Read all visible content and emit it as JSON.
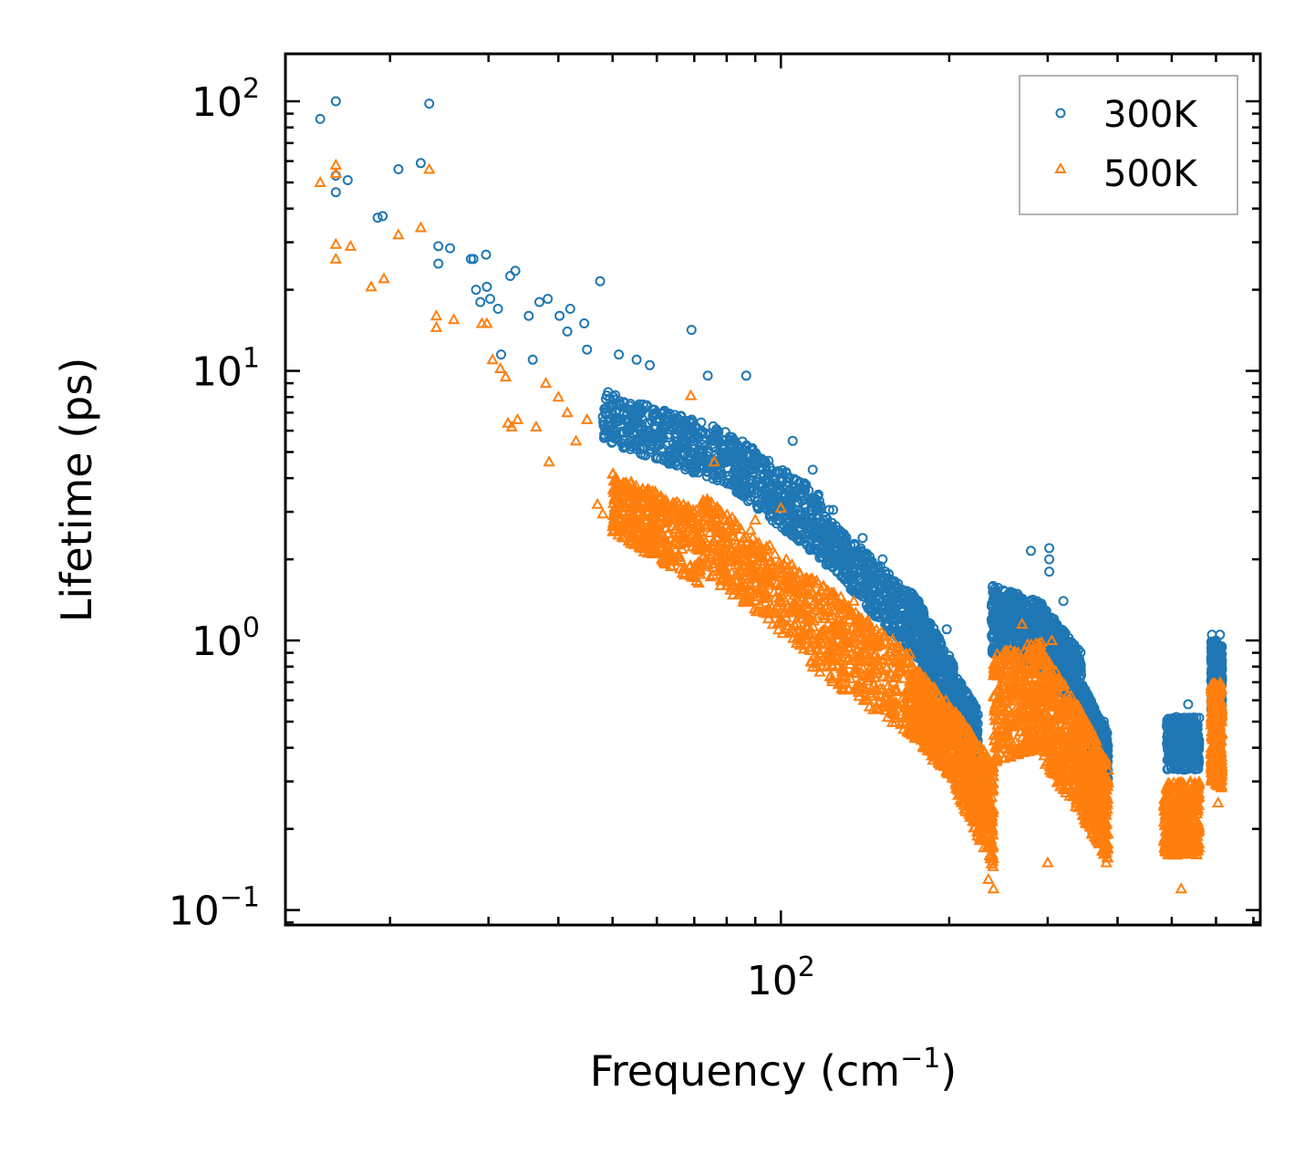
{
  "chart_data": {
    "type": "scatter",
    "title": "",
    "xlabel": "Frequency (cm",
    "xlabel_sup": "−1",
    "xlabel_end": ")",
    "ylabel": "Lifetime (ps)",
    "xscale": "log",
    "yscale": "log",
    "xlim": [
      13,
      720
    ],
    "ylim": [
      0.088,
      150
    ],
    "x_ticks": [
      {
        "base": "10",
        "exp": "2",
        "value": 100
      }
    ],
    "y_ticks": [
      {
        "base": "10",
        "exp": "2",
        "value": 100
      },
      {
        "base": "10",
        "exp": "1",
        "value": 10
      },
      {
        "base": "10",
        "exp": "0",
        "value": 1
      },
      {
        "base": "10",
        "exp": "−1",
        "value": 0.1
      }
    ],
    "legend_position": "top-right",
    "series": [
      {
        "name": "300K",
        "marker": "circle",
        "color": "#1f77b4",
        "points": [
          [
            15.0,
            86
          ],
          [
            16.0,
            100
          ],
          [
            16.0,
            53
          ],
          [
            16.0,
            46
          ],
          [
            16.8,
            51
          ],
          [
            20.7,
            56
          ],
          [
            22.7,
            59
          ],
          [
            23.5,
            98
          ],
          [
            19.0,
            37
          ],
          [
            19.4,
            37.5
          ],
          [
            24.4,
            29
          ],
          [
            24.4,
            25
          ],
          [
            25.6,
            28.5
          ],
          [
            27.9,
            26
          ],
          [
            28.2,
            26
          ],
          [
            29.7,
            27
          ],
          [
            28.5,
            20
          ],
          [
            29.8,
            20.5
          ],
          [
            29.0,
            18
          ],
          [
            30.2,
            18.5
          ],
          [
            31.2,
            17
          ],
          [
            32.8,
            22.5
          ],
          [
            33.5,
            23.5
          ],
          [
            35.4,
            16
          ],
          [
            37.0,
            18
          ],
          [
            38.3,
            18.5
          ],
          [
            42.0,
            17
          ],
          [
            40.2,
            16
          ],
          [
            41.5,
            14
          ],
          [
            44.5,
            15
          ],
          [
            45.0,
            12
          ],
          [
            31.6,
            11.5
          ],
          [
            36.0,
            11
          ],
          [
            47.5,
            21.5
          ],
          [
            51.3,
            11.5
          ],
          [
            55.2,
            11
          ],
          [
            58.3,
            10.5
          ],
          [
            69.2,
            14.2
          ],
          [
            74.0,
            9.6
          ],
          [
            86.7,
            9.6
          ],
          [
            105,
            5.5
          ],
          [
            114,
            4.3
          ],
          [
            122,
            3.05
          ],
          [
            124,
            3.05
          ],
          [
            127,
            2.3
          ],
          [
            140,
            2.4
          ],
          [
            152,
            2.0
          ],
          [
            198,
            1.1
          ],
          [
            260,
            1.5
          ],
          [
            280,
            2.15
          ],
          [
            302,
            2.2
          ],
          [
            302,
            2.0
          ],
          [
            302,
            1.8
          ],
          [
            320,
            1.4
          ],
          [
            338,
            0.75
          ],
          [
            378,
            0.5
          ],
          [
            491,
            0.5
          ],
          [
            535,
            0.58
          ],
          [
            590,
            1.05
          ],
          [
            600,
            1.0
          ],
          [
            610,
            1.05
          ]
        ],
        "bands": [
          [
            48,
            80,
            8.5,
            6.0,
            5.5,
            3.8
          ],
          [
            80,
            118,
            6.0,
            3.5,
            3.8,
            2.0
          ],
          [
            118,
            170,
            3.0,
            1.5,
            2.0,
            0.9
          ],
          [
            170,
            205,
            1.6,
            0.8,
            0.95,
            0.45
          ],
          [
            205,
            225,
            0.75,
            0.55,
            0.45,
            0.3
          ],
          [
            238,
            290,
            1.6,
            1.4,
            0.9,
            0.8
          ],
          [
            290,
            345,
            1.4,
            0.9,
            0.8,
            0.5
          ],
          [
            345,
            385,
            0.7,
            0.45,
            0.45,
            0.3
          ],
          [
            490,
            560,
            0.52,
            0.52,
            0.33,
            0.33
          ],
          [
            588,
            615,
            1.0,
            0.95,
            0.55,
            0.5
          ]
        ]
      },
      {
        "name": "500K",
        "marker": "triangle",
        "color": "#ff7f0e",
        "points": [
          [
            15.0,
            50
          ],
          [
            16.0,
            58
          ],
          [
            16.0,
            54
          ],
          [
            23.5,
            56
          ],
          [
            22.7,
            34
          ],
          [
            20.7,
            32
          ],
          [
            16.0,
            29.5
          ],
          [
            16.0,
            26
          ],
          [
            17.0,
            29
          ],
          [
            18.5,
            20.5
          ],
          [
            19.5,
            22
          ],
          [
            24.2,
            16
          ],
          [
            26.0,
            15.5
          ],
          [
            24.2,
            14.5
          ],
          [
            29.2,
            15
          ],
          [
            29.8,
            15
          ],
          [
            30.5,
            11
          ],
          [
            31.5,
            10.2
          ],
          [
            32.2,
            9.5
          ],
          [
            32.5,
            6.4
          ],
          [
            33.0,
            6.2
          ],
          [
            33.8,
            6.6
          ],
          [
            36.5,
            6.2
          ],
          [
            38.0,
            9.0
          ],
          [
            40.0,
            8.0
          ],
          [
            41.5,
            7.0
          ],
          [
            43.0,
            5.5
          ],
          [
            38.5,
            4.6
          ],
          [
            45.0,
            6.6
          ],
          [
            47.0,
            3.2
          ],
          [
            48.0,
            2.95
          ],
          [
            53.0,
            3.1
          ],
          [
            59.0,
            3.0
          ],
          [
            62.0,
            2.4
          ],
          [
            69.0,
            8.1
          ],
          [
            76.0,
            4.6
          ],
          [
            80.0,
            1.6
          ],
          [
            90.0,
            2.8
          ],
          [
            100.0,
            3.1
          ],
          [
            115.0,
            1.4
          ],
          [
            122.0,
            1.3
          ],
          [
            128.0,
            1.45
          ],
          [
            135.0,
            1.4
          ],
          [
            160.0,
            0.53
          ],
          [
            175.0,
            0.45
          ],
          [
            183.0,
            0.4
          ],
          [
            187.0,
            0.36
          ],
          [
            195.0,
            0.55
          ],
          [
            210.0,
            0.28
          ],
          [
            235.0,
            0.13
          ],
          [
            240.0,
            0.12
          ],
          [
            270.0,
            1.15
          ],
          [
            300.0,
            0.15
          ],
          [
            305.0,
            1.0
          ],
          [
            382.0,
            0.15
          ],
          [
            484.0,
            0.18
          ],
          [
            520.0,
            0.12
          ],
          [
            548.0,
            0.18
          ],
          [
            605.0,
            0.25
          ]
        ],
        "bands": [
          [
            50,
            72,
            4.2,
            3.0,
            2.5,
            1.6
          ],
          [
            72,
            112,
            3.5,
            1.8,
            1.8,
            0.9
          ],
          [
            112,
            170,
            1.8,
            0.9,
            0.8,
            0.45
          ],
          [
            170,
            205,
            0.85,
            0.55,
            0.45,
            0.3
          ],
          [
            205,
            240,
            0.55,
            0.35,
            0.28,
            0.14
          ],
          [
            240,
            295,
            0.9,
            1.0,
            0.35,
            0.4
          ],
          [
            295,
            345,
            0.9,
            0.55,
            0.35,
            0.22
          ],
          [
            345,
            385,
            0.55,
            0.35,
            0.22,
            0.15
          ],
          [
            484,
            560,
            0.3,
            0.3,
            0.16,
            0.16
          ],
          [
            588,
            615,
            0.7,
            0.7,
            0.3,
            0.28
          ]
        ]
      }
    ]
  }
}
